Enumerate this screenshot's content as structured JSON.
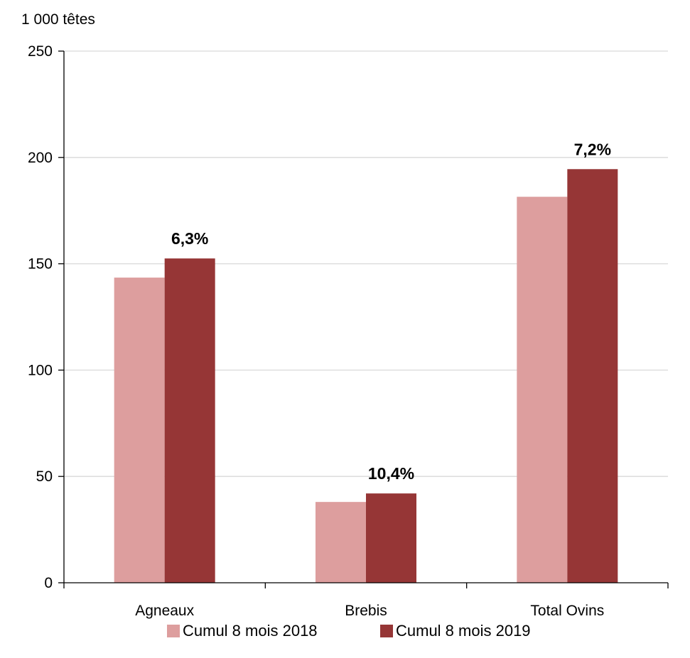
{
  "chart_data": {
    "type": "bar",
    "unit_label": "1 000 têtes",
    "categories": [
      "Agneaux",
      "Brebis",
      "Total Ovins"
    ],
    "series": [
      {
        "name": "Cumul 8 mois 2018",
        "color": "#dd9e9e",
        "values": [
          143.5,
          38,
          181.5
        ]
      },
      {
        "name": "Cumul 8 mois 2019",
        "color": "#963636",
        "values": [
          152.5,
          42,
          194.5
        ]
      }
    ],
    "data_labels": [
      "6,3%",
      "10,4%",
      "7,2%"
    ],
    "ylim": [
      0,
      250
    ],
    "yticks": [
      0,
      50,
      100,
      150,
      200,
      250
    ],
    "grid": true,
    "legend_position": "bottom"
  }
}
